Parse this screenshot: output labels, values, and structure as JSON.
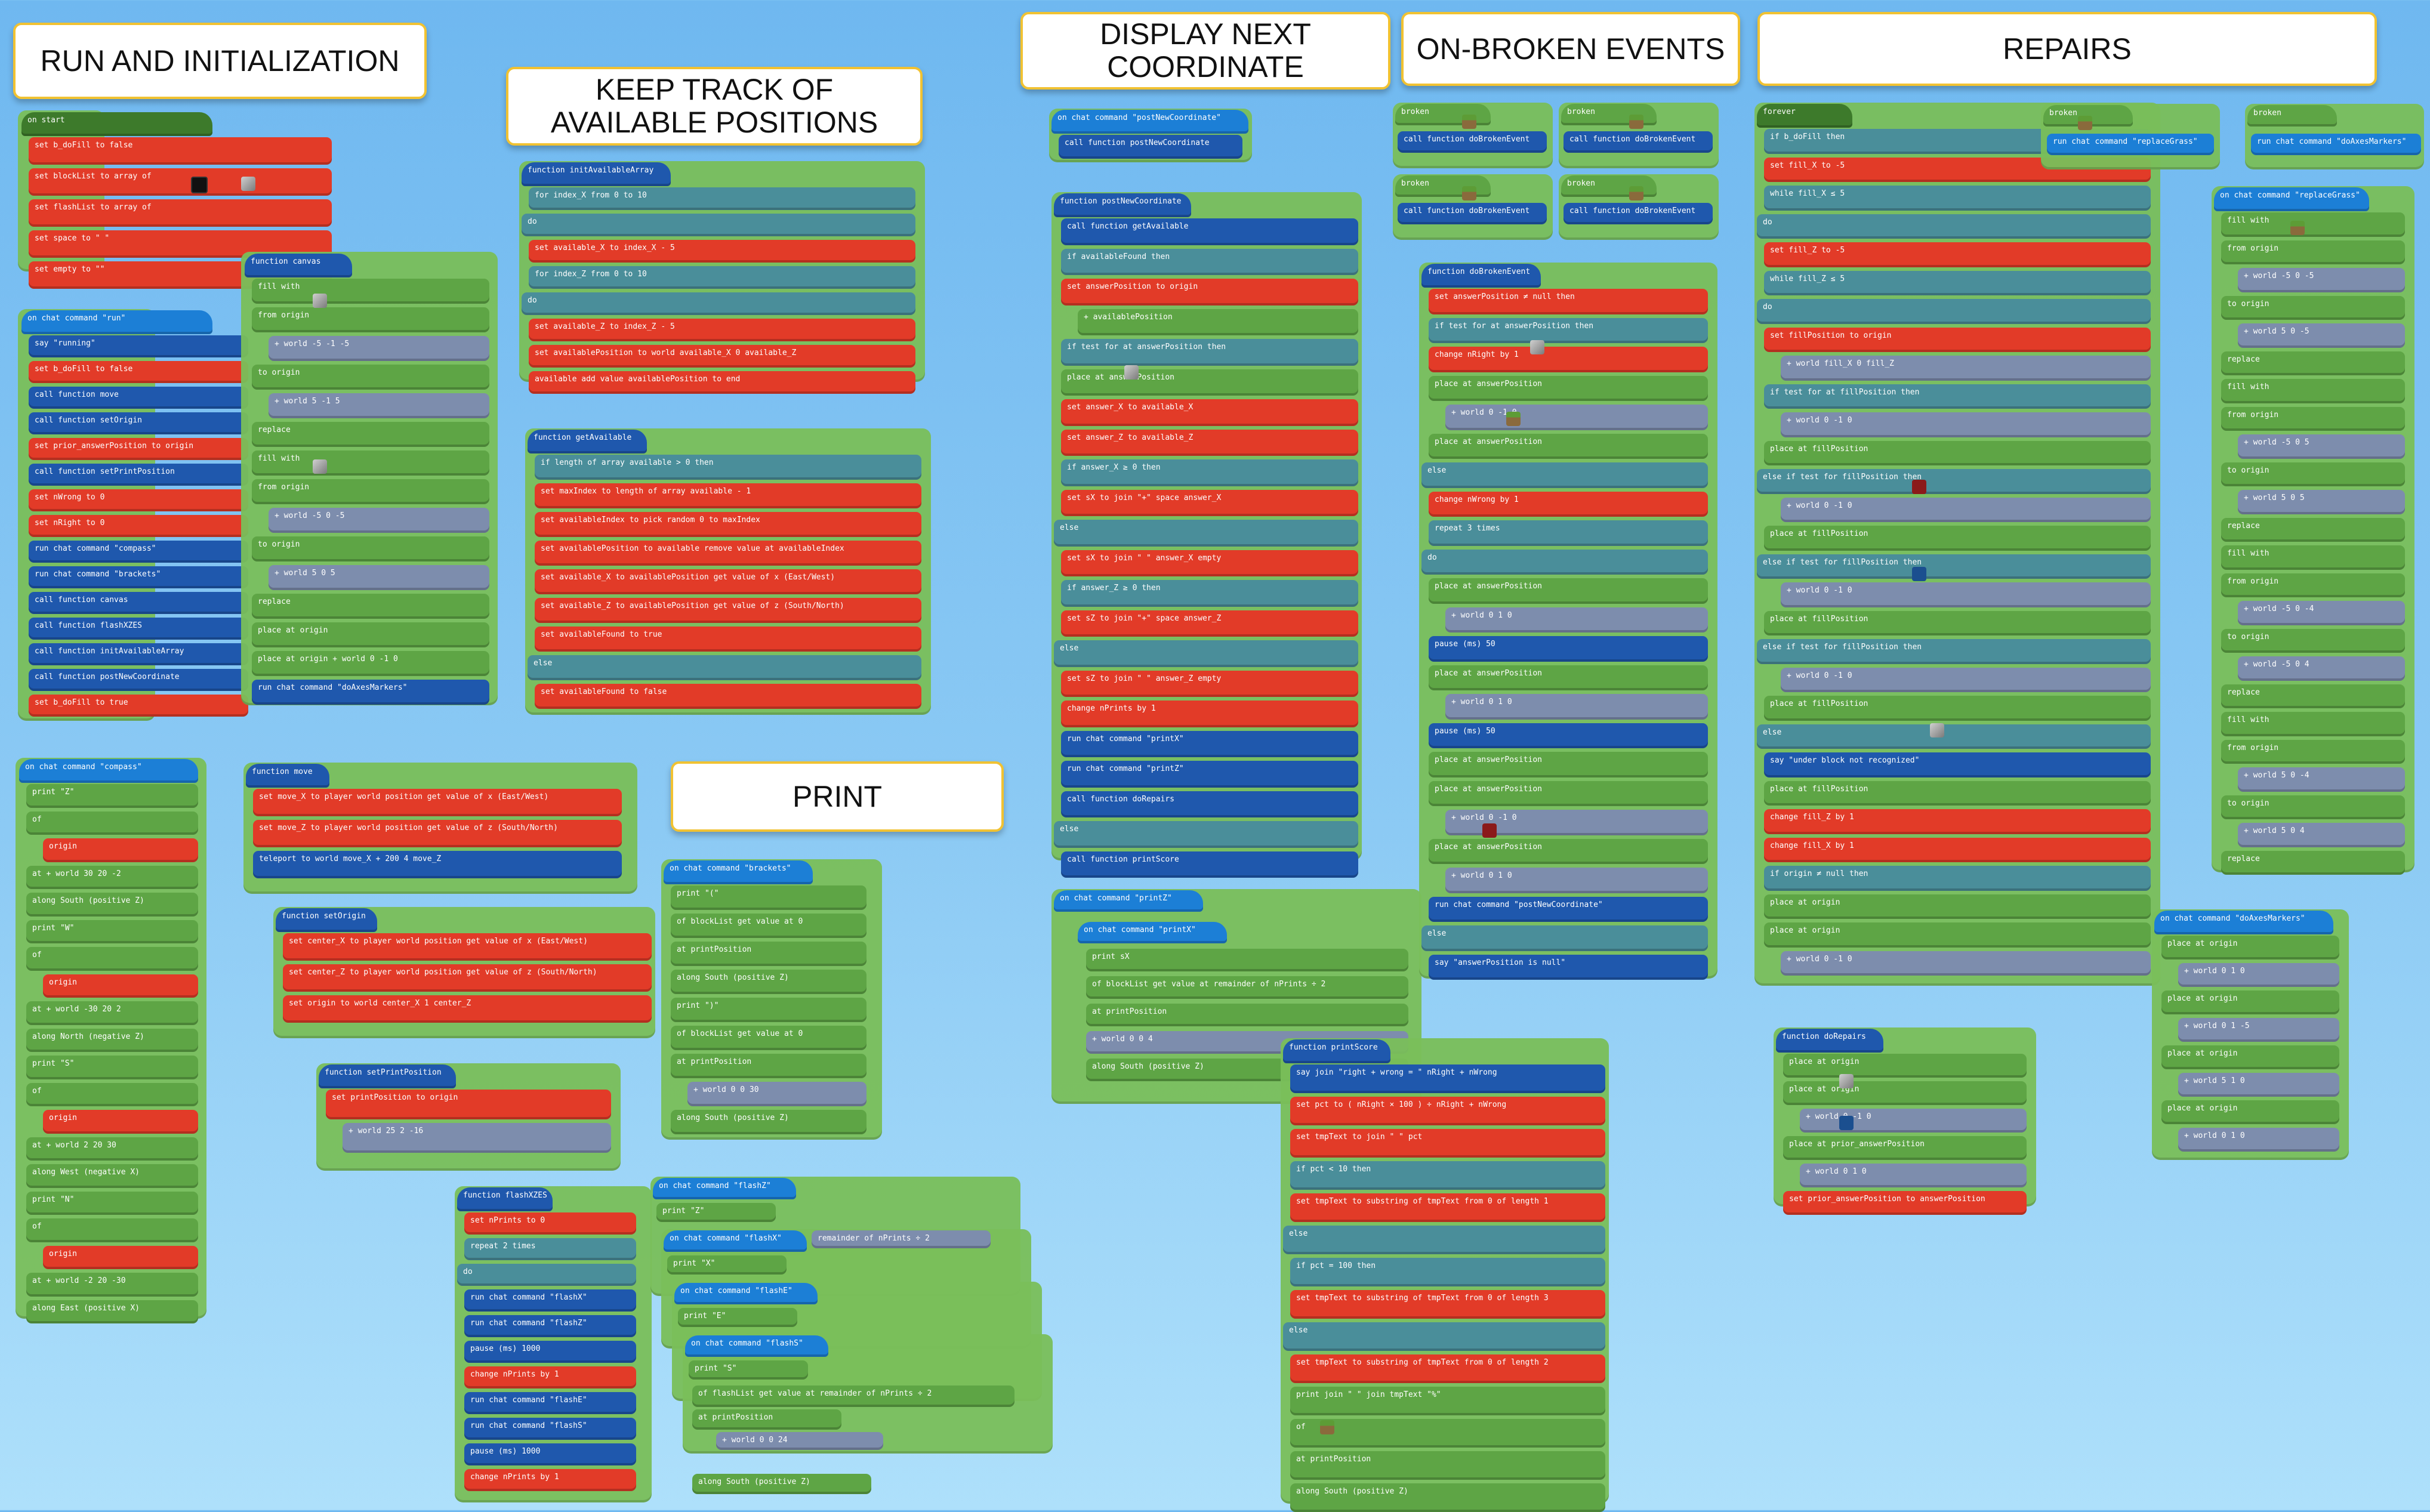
{
  "titles": {
    "run": "RUN AND INITIALIZATION",
    "keep": "KEEP TRACK OF\nAVAILABLE POSITIONS",
    "display": "DISPLAY NEXT\nCOORDINATE",
    "broken": "ON-BROKEN EVENTS",
    "repairs": "REPAIRS",
    "print": "PRINT"
  },
  "on_start": {
    "hat": "on start",
    "lines": [
      "set  b_doFill  to  false",
      "set  blockList  to  array of",
      "set  flashList  to  array of",
      "set  space  to  \" \"",
      "set  empty  to  \"\""
    ]
  },
  "run_cmd": {
    "hat": "on chat command  \"run\"",
    "lines": [
      "say  \"running\"",
      "set  b_doFill  to  false",
      "call function  move",
      "call function  setOrigin",
      "set  prior_answerPosition  to  origin",
      "call function  setPrintPosition",
      "set  nWrong  to  0",
      "set  nRight  to  0",
      "run chat command  \"compass\"",
      "run chat command  \"brackets\"",
      "call function  canvas",
      "call function  flashXZES",
      "call function  initAvailableArray",
      "call function  postNewCoordinate",
      "set  b_doFill  to  true"
    ]
  },
  "compass_cmd": {
    "hat": "on chat command  \"compass\"",
    "lines": [
      "print  \"Z\"",
      "of",
      "origin",
      "at   + world  30  20  -2",
      "along  South (positive Z)",
      "print  \"W\"",
      "of",
      "origin",
      "at   + world  -30  20  2",
      "along  North (negative Z)",
      "print  \"S\"",
      "of",
      "origin",
      "at   + world  2  20  30",
      "along  West (negative X)",
      "print  \"N\"",
      "of",
      "origin",
      "at   + world  -2  20  -30",
      "along  East (positive X)"
    ]
  },
  "canvas_fn": {
    "hat": "function  canvas",
    "lines": [
      "fill with",
      "from  origin",
      "+ world  -5  -1  -5",
      "to  origin",
      "+ world  5  -1  5",
      "replace",
      "fill with",
      "from  origin",
      "+ world  -5  0  -5",
      "to  origin",
      "+ world  5  0  5",
      "replace",
      "place   at  origin",
      "place   at  origin  + world  0  -1  0",
      "run chat command  \"doAxesMarkers\""
    ]
  },
  "init_fn": {
    "hat": "function  initAvailableArray",
    "lines": [
      "for  index_X  from 0 to  10",
      "do",
      "set  available_X  to  index_X  -  5",
      "for  index_Z  from 0 to  10",
      "do",
      "set  available_Z  to  index_Z  -  5",
      "set  availablePosition  to  world  available_X  0  available_Z",
      "available  add value  availablePosition  to end"
    ]
  },
  "getavail_fn": {
    "hat": "function  getAvailable",
    "lines": [
      "if  length of array  available  >  0  then",
      "set  maxIndex  to  length of array  available  -  1",
      "set  availableIndex  to  pick random  0  to  maxIndex",
      "set  availablePosition  to  available  remove value at  availableIndex",
      "set  available_X  to  availablePosition  get value of  x (East/West)",
      "set  available_Z  to  availablePosition  get value of  z (South/North)",
      "set  availableFound  to  true",
      "else",
      "set  availableFound  to  false"
    ]
  },
  "move_fn": {
    "hat": "function  move",
    "lines": [
      "set  move_X  to  player world position  get value of  x (East/West)",
      "set  move_Z  to  player world position  get value of  z (South/North)",
      "teleport to  world  move_X  +  200  4  move_Z"
    ]
  },
  "setorigin_fn": {
    "hat": "function  setOrigin",
    "lines": [
      "set  center_X  to  player world position  get value of  x (East/West)",
      "set  center_Z  to  player world position  get value of  z (South/North)",
      "set  origin  to  world  center_X  1  center_Z"
    ]
  },
  "setprint_fn": {
    "hat": "function  setPrintPosition",
    "lines": [
      "set  printPosition  to  origin",
      "+ world  25  2  -16"
    ]
  },
  "flash_fn": {
    "hat": "function  flashXZES",
    "lines": [
      "set  nPrints  to  0",
      "repeat  2  times",
      "do",
      "run chat command  \"flashX\"",
      "run chat command  \"flashZ\"",
      "pause (ms)  1000",
      "change  nPrints  by  1",
      "run chat command  \"flashE\"",
      "run chat command  \"flashS\"",
      "pause (ms)  1000",
      "change  nPrints  by  1"
    ]
  },
  "brackets_cmd": {
    "hat": "on chat command  \"brackets\"",
    "lines": [
      "print  \"(\"",
      "of  blockList  get value at  0",
      "at  printPosition",
      "along  South (positive Z)",
      "print  \")\"",
      "of  blockList  get value at  0",
      "at  printPosition",
      "+ world  0  0  30",
      "along  South (positive Z)"
    ]
  },
  "flashes": [
    {
      "hat": "on chat command  \"flashZ\"",
      "print": "print  \"Z\""
    },
    {
      "hat": "on chat command  \"flashX\"",
      "print": "print  \"X\""
    },
    {
      "hat": "on chat command  \"flashE\"",
      "print": "print  \"E\""
    },
    {
      "hat": "on chat command  \"flashS\"",
      "print": "print  \"S\""
    }
  ],
  "flash_common": {
    "remainder": "remainder of  nPrints  ÷  2",
    "of": "of  flashList  get value at  remainder of  nPrints  ÷  2",
    "at": "at  printPosition",
    "offset": "+ world  0  0  24",
    "along": "along  South (positive Z)"
  },
  "postnew_cmd": {
    "hat": "on chat command  \"postNewCoordinate\"",
    "lines": [
      "call function  postNewCoordinate"
    ]
  },
  "postnew_fn": {
    "hat": "function  postNewCoordinate",
    "lines": [
      "call function  getAvailable",
      "if  availableFound  then",
      "set  answerPosition  to  origin",
      "+ availablePosition",
      "if  test for   at  answerPosition  then",
      "place   at  answerPosition",
      "set  answer_X  to  available_X",
      "set  answer_Z  to  available_Z",
      "if  answer_X  ≥  0  then",
      "set  sX  to  join  \"+\"  space  answer_X",
      "else",
      "set  sX  to  join  \" \"  answer_X  empty",
      "if  answer_Z  ≥  0  then",
      "set  sZ  to  join  \"+\"  space  answer_Z",
      "else",
      "set  sZ  to  join  \" \"  answer_Z  empty",
      "change  nPrints  by  1",
      "run chat command  \"printX\"",
      "run chat command  \"printZ\"",
      "call function  doRepairs",
      "else",
      "call function  printScore"
    ]
  },
  "printz_cmd": {
    "hat": "on chat command  \"printZ\"",
    "under_hat": "on chat command  \"printX\"",
    "lines": [
      "print  sX",
      "of  blockList  get value at  remainder of  nPrints  ÷  2",
      "at  printPosition",
      "+ world  0  0  4",
      "along  South (positive Z)"
    ]
  },
  "broken": {
    "hat_label": "broken",
    "call": "call function  doBrokenEvent"
  },
  "dobroken_fn": {
    "hat": "function  doBrokenEvent",
    "lines": [
      "set  answerPosition  ≠  null  then",
      "if  test for   at  answerPosition  then",
      "change  nRight  by  1",
      "place   at  answerPosition",
      "+ world  0  -1  0",
      "place   at  answerPosition",
      "else",
      "change  nWrong  by  1",
      "repeat  3  times",
      "do",
      "place   at  answerPosition",
      "+ world  0  1  0",
      "pause (ms)  50",
      "place   at  answerPosition",
      "+ world  0  1  0",
      "pause (ms)  50",
      "place   at  answerPosition",
      "place   at  answerPosition",
      "+ world  0  -1  0",
      "place   at  answerPosition",
      "+ world  0  1  0",
      "run chat command  \"postNewCoordinate\"",
      "else",
      "say  \"answerPosition is null\""
    ]
  },
  "printscore_fn": {
    "hat": "function  printScore",
    "lines": [
      "say  join  \"right + wrong = \"  nRight  +  nWrong",
      "set  pct  to  (  nRight  ×  100  )  ÷  nRight  +  nWrong",
      "set  tmpText  to  join  \" \"  pct",
      "if  pct  <  10  then",
      "set  tmpText  to  substring of  tmpText  from  0  of length  1",
      "else",
      "if  pct  =  100  then",
      "set  tmpText  to  substring of  tmpText  from  0  of length  3",
      "else",
      "set  tmpText  to  substring of  tmpText  from  0  of length  2",
      "print  join  \" \"  join  tmpText  \"%\"",
      "of",
      "at  printPosition",
      "along  South (positive Z)"
    ]
  },
  "forever": {
    "hat": "forever",
    "lines": [
      "if  b_doFill  then",
      "set  fill_X  to  -5",
      "while  fill_X  ≤  5",
      "do",
      "set  fill_Z  to  -5",
      "while  fill_Z  ≤  5",
      "do",
      "set  fillPosition  to  origin",
      "+ world  fill_X  0  fill_Z",
      "if  test for   at  fillPosition  then",
      "+ world  0  -1  0",
      "place   at  fillPosition",
      "else if  test for  fillPosition  then",
      "+ world  0  -1  0",
      "place   at  fillPosition",
      "else if  test for  fillPosition  then",
      "+ world  0  -1  0",
      "place   at  fillPosition",
      "else if  test for  fillPosition  then",
      "+ world  0  -1  0",
      "place   at  fillPosition",
      "else",
      "say  \"under block not recognized\"",
      "place   at  fillPosition",
      "change  fill_Z  by  1",
      "change  fill_X  by  1",
      "if  origin  ≠  null  then",
      "place   at  origin",
      "place   at  origin",
      "+ world  0  -1  0"
    ]
  },
  "dorepairs_fn": {
    "hat": "function  doRepairs",
    "lines": [
      "place   at  origin",
      "place   at  origin",
      "+ world  0  -1  0",
      "place   at  prior_answerPosition",
      "+ world  0  1  0",
      "set  prior_answerPosition  to  answerPosition"
    ]
  },
  "repl_broken": {
    "grass": "run chat command  \"replaceGrass\"",
    "markers": "run chat command  \"doAxesMarkers\""
  },
  "replacegrass_cmd": {
    "hat": "on chat command  \"replaceGrass\"",
    "lines": [
      "fill with",
      "from  origin",
      "+ world  -5  0  -5",
      "to  origin",
      "+ world  5  0  -5",
      "replace",
      "fill with",
      "from  origin",
      "+ world  -5  0  5",
      "to  origin",
      "+ world  5  0  5",
      "replace",
      "fill with",
      "from  origin",
      "+ world  -5  0  -4",
      "to  origin",
      "+ world  -5  0  4",
      "replace",
      "fill with",
      "from  origin",
      "+ world  5  0  -4",
      "to  origin",
      "+ world  5  0  4",
      "replace"
    ]
  },
  "axes_cmd": {
    "hat": "on chat command  \"doAxesMarkers\"",
    "lines": [
      "place   at  origin",
      "+ world  0  1  0",
      "place   at  origin",
      "+ world  0  1  -5",
      "place   at  origin",
      "+ world  5  1  0",
      "place   at  origin",
      "+ world  0  1  0"
    ]
  }
}
